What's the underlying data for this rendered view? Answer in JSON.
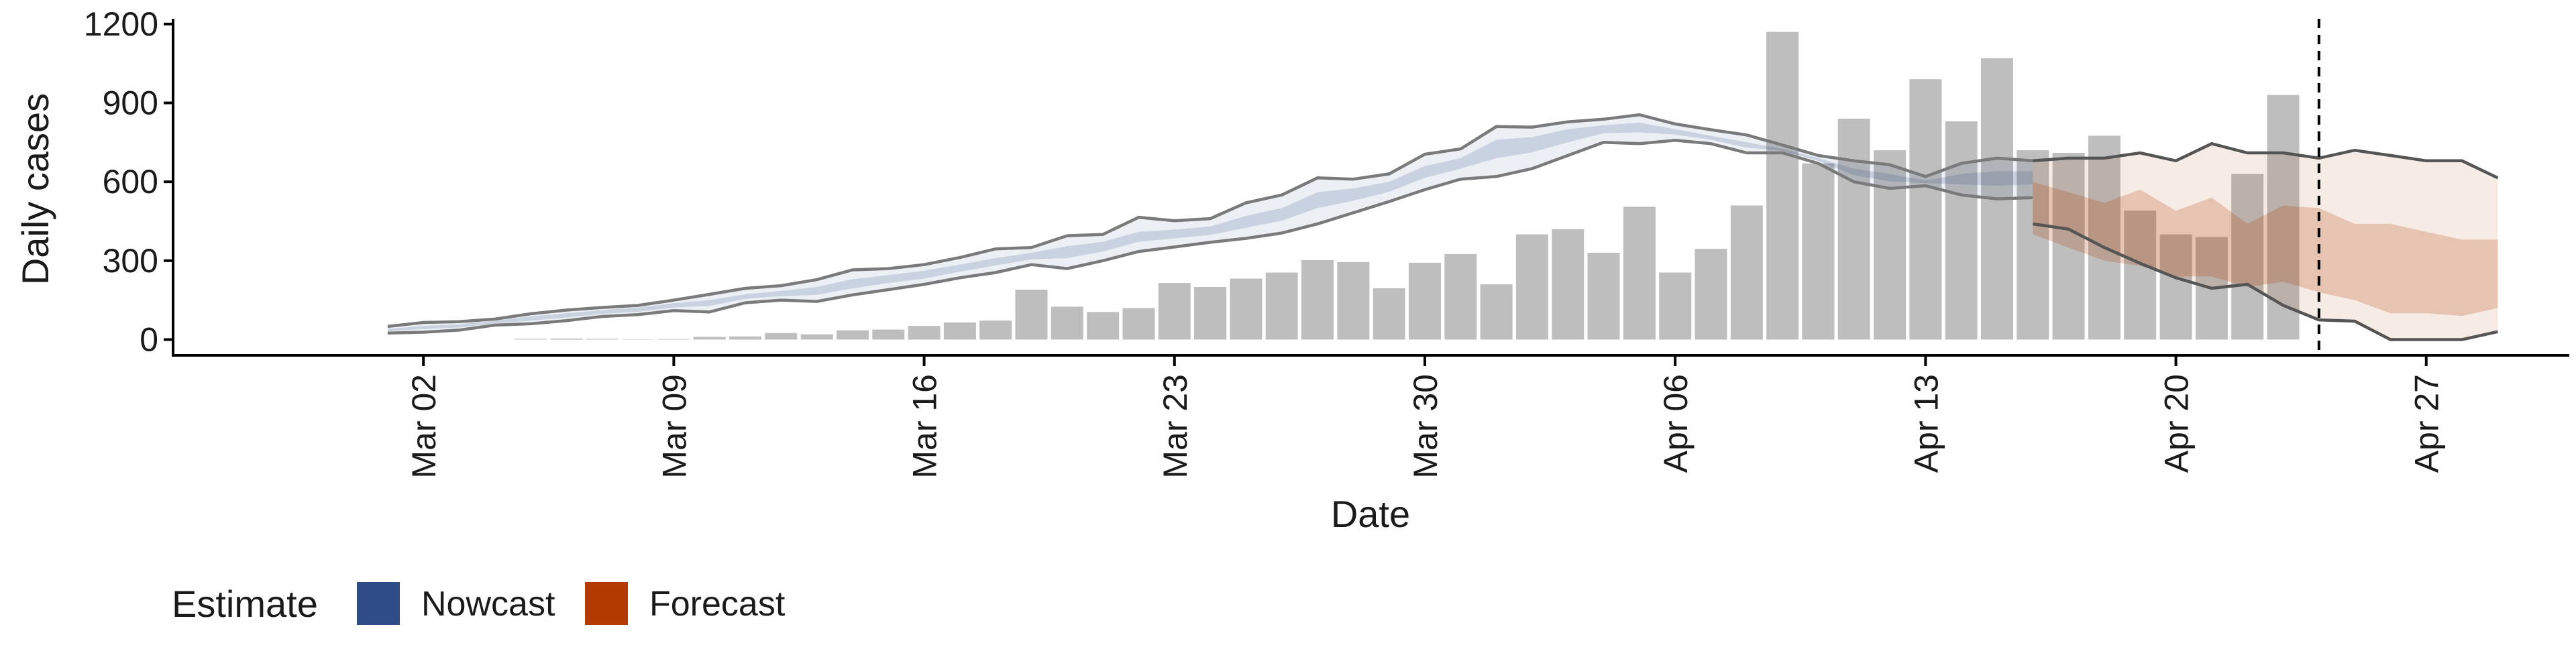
{
  "chart_data": {
    "type": "bar",
    "xlabel": "Date",
    "ylabel": "Daily cases",
    "ylim": [
      -60,
      1220
    ],
    "yticks": [
      0,
      300,
      600,
      900,
      1200
    ],
    "ytick_labels": [
      "0",
      "300",
      "600",
      "900",
      "1200"
    ],
    "xlim": [
      "2020-02-24",
      "2020-05-01"
    ],
    "xtick_dates": [
      "2020-03-02",
      "2020-03-09",
      "2020-03-16",
      "2020-03-23",
      "2020-03-30",
      "2020-04-06",
      "2020-04-13",
      "2020-04-20",
      "2020-04-27"
    ],
    "xtick_labels": [
      "Mar 02",
      "Mar 09",
      "Mar 16",
      "Mar 23",
      "Mar 30",
      "Apr 06",
      "Apr 13",
      "Apr 20",
      "Apr 27"
    ],
    "grid": false,
    "reference_line_date": "2020-04-24",
    "reported_cases": {
      "dates": [
        "2020-03-05",
        "2020-03-06",
        "2020-03-07",
        "2020-03-08",
        "2020-03-09",
        "2020-03-10",
        "2020-03-11",
        "2020-03-12",
        "2020-03-13",
        "2020-03-14",
        "2020-03-15",
        "2020-03-16",
        "2020-03-17",
        "2020-03-18",
        "2020-03-19",
        "2020-03-20",
        "2020-03-21",
        "2020-03-22",
        "2020-03-23",
        "2020-03-24",
        "2020-03-25",
        "2020-03-26",
        "2020-03-27",
        "2020-03-28",
        "2020-03-29",
        "2020-03-30",
        "2020-03-31",
        "2020-04-01",
        "2020-04-02",
        "2020-04-03",
        "2020-04-04",
        "2020-04-05",
        "2020-04-06",
        "2020-04-07",
        "2020-04-08",
        "2020-04-09",
        "2020-04-10",
        "2020-04-11",
        "2020-04-12",
        "2020-04-13",
        "2020-04-14",
        "2020-04-15",
        "2020-04-16",
        "2020-04-17",
        "2020-04-18",
        "2020-04-19",
        "2020-04-20",
        "2020-04-21",
        "2020-04-22",
        "2020-04-23",
        "2020-04-24"
      ],
      "values": [
        3,
        4,
        3,
        1,
        2,
        10,
        12,
        25,
        20,
        35,
        38,
        52,
        65,
        72,
        190,
        125,
        105,
        120,
        215,
        200,
        232,
        255,
        302,
        295,
        195,
        292,
        325,
        210,
        400,
        420,
        330,
        505,
        255,
        345,
        510,
        1170,
        670,
        840,
        720,
        990,
        830,
        1070,
        720,
        710,
        775,
        490,
        400,
        390,
        630,
        930,
        0
      ]
    },
    "series": [
      {
        "name": "Nowcast",
        "color": "#2f4c87",
        "dates": [
          "2020-03-01",
          "2020-03-02",
          "2020-03-03",
          "2020-03-04",
          "2020-03-05",
          "2020-03-06",
          "2020-03-07",
          "2020-03-08",
          "2020-03-09",
          "2020-03-10",
          "2020-03-11",
          "2020-03-12",
          "2020-03-13",
          "2020-03-14",
          "2020-03-15",
          "2020-03-16",
          "2020-03-17",
          "2020-03-18",
          "2020-03-19",
          "2020-03-20",
          "2020-03-21",
          "2020-03-22",
          "2020-03-23",
          "2020-03-24",
          "2020-03-25",
          "2020-03-26",
          "2020-03-27",
          "2020-03-28",
          "2020-03-29",
          "2020-03-30",
          "2020-03-31",
          "2020-04-01",
          "2020-04-02",
          "2020-04-03",
          "2020-04-04",
          "2020-04-05",
          "2020-04-06",
          "2020-04-07",
          "2020-04-08",
          "2020-04-09",
          "2020-04-10",
          "2020-04-11",
          "2020-04-12",
          "2020-04-13",
          "2020-04-14",
          "2020-04-15",
          "2020-04-16"
        ],
        "upper": [
          50,
          65,
          68,
          78,
          98,
          112,
          122,
          130,
          150,
          172,
          195,
          205,
          228,
          265,
          270,
          285,
          312,
          345,
          350,
          395,
          400,
          465,
          452,
          460,
          520,
          550,
          615,
          610,
          630,
          705,
          725,
          810,
          808,
          828,
          838,
          855,
          820,
          798,
          778,
          740,
          700,
          680,
          665,
          620,
          670,
          690,
          680
        ],
        "lower": [
          25,
          28,
          36,
          55,
          60,
          72,
          88,
          95,
          110,
          105,
          140,
          150,
          145,
          170,
          190,
          210,
          235,
          255,
          285,
          270,
          300,
          335,
          352,
          370,
          385,
          405,
          440,
          482,
          525,
          570,
          610,
          620,
          650,
          700,
          750,
          745,
          758,
          745,
          710,
          710,
          670,
          600,
          575,
          585,
          550,
          535,
          540
        ],
        "band_upper": [
          40,
          52,
          58,
          72,
          88,
          100,
          112,
          122,
          138,
          150,
          172,
          185,
          200,
          230,
          245,
          262,
          285,
          310,
          330,
          355,
          372,
          410,
          418,
          430,
          470,
          500,
          560,
          575,
          600,
          660,
          690,
          760,
          770,
          800,
          815,
          825,
          800,
          775,
          750,
          725,
          690,
          650,
          630,
          605,
          630,
          640,
          640
        ],
        "band_lower": [
          32,
          40,
          46,
          62,
          72,
          84,
          98,
          106,
          122,
          128,
          155,
          165,
          170,
          195,
          215,
          232,
          258,
          282,
          305,
          310,
          335,
          372,
          385,
          398,
          425,
          452,
          500,
          528,
          562,
          615,
          650,
          690,
          712,
          750,
          785,
          788,
          780,
          760,
          730,
          718,
          680,
          625,
          602,
          595,
          590,
          585,
          590
        ]
      },
      {
        "name": "Forecast",
        "color": "#b33a00",
        "dates": [
          "2020-04-16",
          "2020-04-17",
          "2020-04-18",
          "2020-04-19",
          "2020-04-20",
          "2020-04-21",
          "2020-04-22",
          "2020-04-23",
          "2020-04-24",
          "2020-04-25",
          "2020-04-26",
          "2020-04-27",
          "2020-04-28",
          "2020-04-29"
        ],
        "upper": [
          680,
          690,
          690,
          710,
          680,
          745,
          710,
          710,
          690,
          720,
          700,
          680,
          680,
          615
        ],
        "lower": [
          440,
          420,
          350,
          290,
          235,
          195,
          210,
          130,
          75,
          70,
          0,
          0,
          0,
          30
        ],
        "band_upper": [
          600,
          560,
          520,
          570,
          490,
          540,
          440,
          510,
          500,
          440,
          440,
          410,
          380,
          380
        ],
        "band_lower": [
          400,
          350,
          300,
          280,
          240,
          240,
          200,
          220,
          180,
          150,
          100,
          100,
          90,
          120
        ]
      }
    ],
    "legend": {
      "title": "Estimate",
      "position": "bottom-left",
      "items": [
        {
          "label": "Nowcast",
          "color": "#2f4c87"
        },
        {
          "label": "Forecast",
          "color": "#b33a00"
        }
      ]
    }
  }
}
